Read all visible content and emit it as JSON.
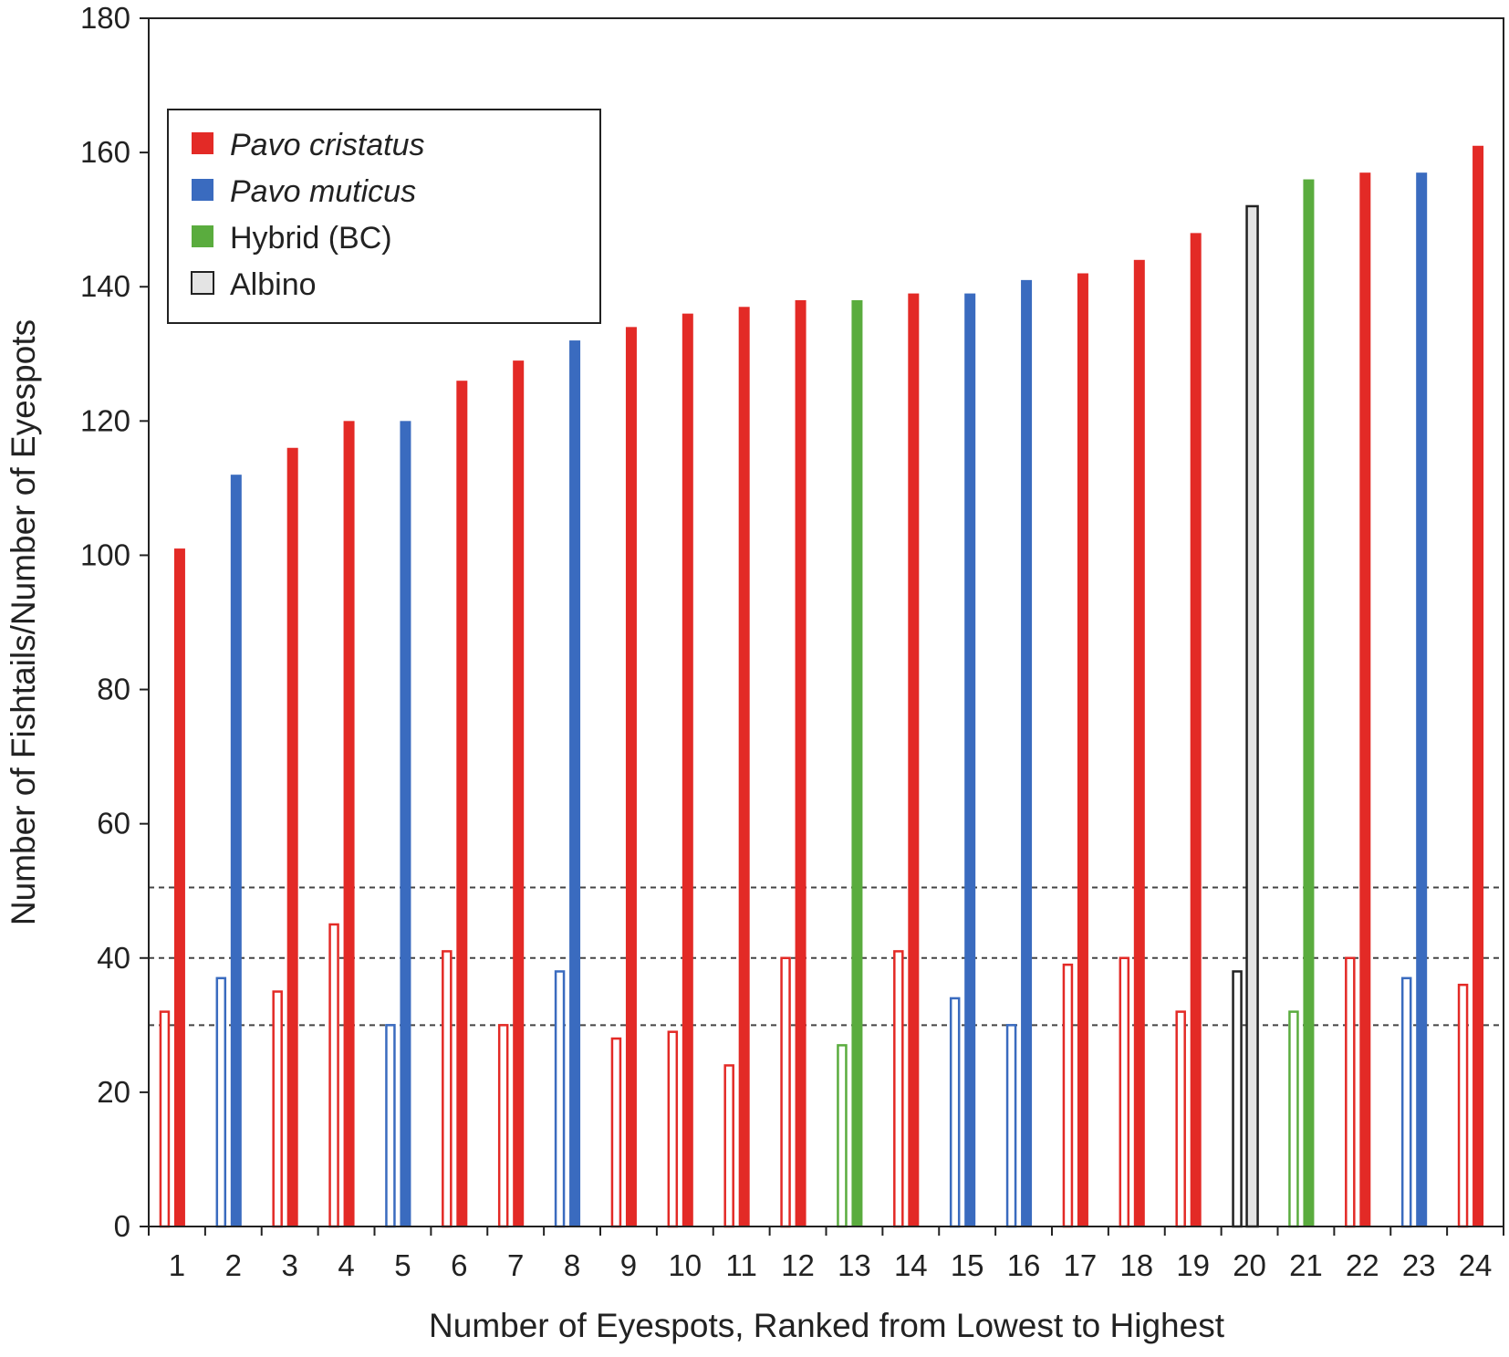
{
  "chart_data": {
    "type": "bar",
    "title": "",
    "xlabel": "Number of Eyespots, Ranked from Lowest to Highest",
    "ylabel": "Number of Fishtails/Number of Eyespots",
    "ylim": [
      0,
      180
    ],
    "yticks": [
      "0",
      "20",
      "40",
      "60",
      "80",
      "100",
      "120",
      "140",
      "160",
      "180"
    ],
    "categories": [
      "1",
      "2",
      "3",
      "4",
      "5",
      "6",
      "7",
      "8",
      "9",
      "10",
      "11",
      "12",
      "13",
      "14",
      "15",
      "16",
      "17",
      "18",
      "19",
      "20",
      "21",
      "22",
      "23",
      "24"
    ],
    "group_by_category": [
      "Pavo cristatus",
      "Pavo muticus",
      "Pavo cristatus",
      "Pavo cristatus",
      "Pavo muticus",
      "Pavo cristatus",
      "Pavo cristatus",
      "Pavo muticus",
      "Pavo cristatus",
      "Pavo cristatus",
      "Pavo cristatus",
      "Pavo cristatus",
      "Hybrid (BC)",
      "Pavo cristatus",
      "Pavo muticus",
      "Pavo muticus",
      "Pavo cristatus",
      "Pavo cristatus",
      "Pavo cristatus",
      "Albino",
      "Hybrid (BC)",
      "Pavo cristatus",
      "Pavo muticus",
      "Pavo cristatus"
    ],
    "series": [
      {
        "style": "outline",
        "values": [
          32,
          37,
          35,
          45,
          30,
          41,
          30,
          38,
          28,
          29,
          24,
          40,
          27,
          41,
          34,
          30,
          39,
          40,
          32,
          38,
          32,
          40,
          37,
          36
        ]
      },
      {
        "style": "filled",
        "values": [
          101,
          112,
          116,
          120,
          120,
          126,
          129,
          132,
          134,
          136,
          137,
          138,
          138,
          139,
          139,
          141,
          142,
          144,
          148,
          152,
          156,
          157,
          157,
          161
        ]
      }
    ],
    "reference_lines": [
      30,
      40,
      50.5
    ],
    "reference_line_style": "dashed",
    "grid": false,
    "legend": {
      "placement": "top-left",
      "entries": [
        {
          "label": "Pavo cristatus",
          "color": "#e32a26",
          "italic": true
        },
        {
          "label": "Pavo muticus",
          "color": "#3a6bbf",
          "italic": true
        },
        {
          "label": "Hybrid (BC)",
          "color": "#5aac3e",
          "italic": false
        },
        {
          "label": "Albino",
          "color": "#e4e4e4",
          "italic": false,
          "border": "#222222"
        }
      ]
    }
  }
}
